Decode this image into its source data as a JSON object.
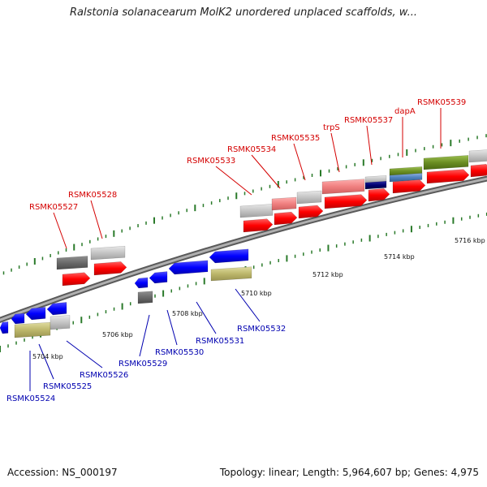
{
  "title": "Ralstonia solanacearum MolK2 unordered unplaced scaffolds, w...",
  "footer": {
    "accession": "Accession: NS_000197",
    "summary": "Topology: linear; Length: 5,964,607 bp; Genes: 4,975"
  },
  "colors": {
    "top_label": "#d40000",
    "bottom_label": "#0000b0",
    "red_gene": "#ff0000",
    "blue_gene": "#0000ff",
    "grey_feature": "#c8c8c8",
    "dark_grey_feature": "#6a6a6a",
    "pink_feature": "#f08080",
    "olive_feature": "#6b8e23",
    "khaki_feature": "#bdb76b",
    "navy_feature": "#000070",
    "steelblue_feature": "#4f81bd",
    "backbone": "#8a8a8a",
    "tick": "#2a7a2a"
  },
  "labels_top": [
    "RSMK05527",
    "RSMK05528",
    "RSMK05533",
    "RSMK05534",
    "RSMK05535",
    "trpS",
    "RSMK05537",
    "dapA",
    "RSMK05539"
  ],
  "labels_bottom": [
    "RSMK05524",
    "RSMK05525",
    "RSMK05526",
    "RSMK05529",
    "RSMK05530",
    "RSMK05531",
    "RSMK05532"
  ],
  "scale_labels": [
    "5704 kbp",
    "5706 kbp",
    "5708 kbp",
    "5710 kbp",
    "5712 kbp",
    "5714 kbp",
    "5716 kbp"
  ]
}
